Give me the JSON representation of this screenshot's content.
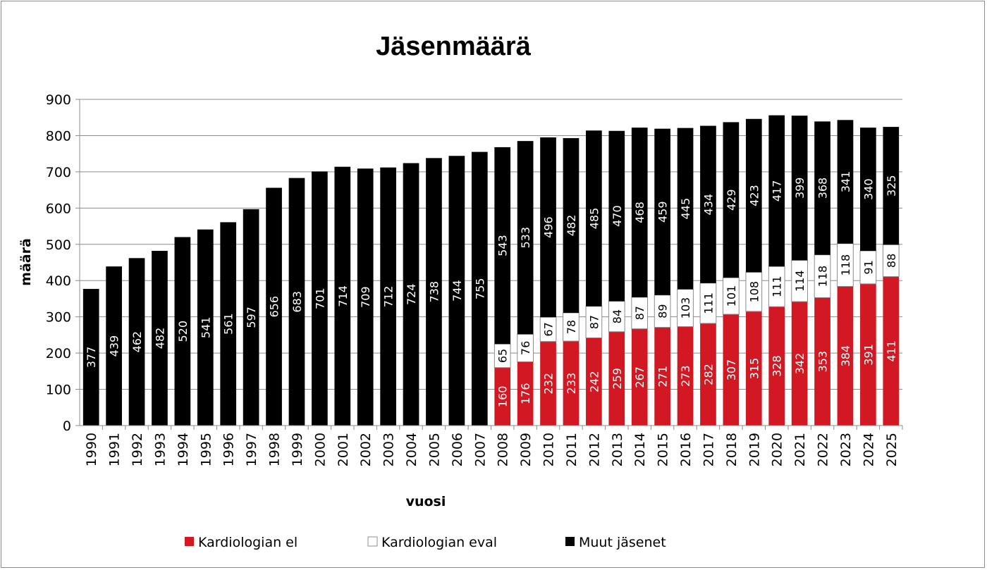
{
  "chart_data": {
    "type": "bar",
    "stacked": true,
    "title": "Jäsenmäärä",
    "xlabel": "vuosi",
    "ylabel": "määrä",
    "ylim": [
      0,
      900
    ],
    "yticks": [
      0,
      100,
      200,
      300,
      400,
      500,
      600,
      700,
      800,
      900
    ],
    "grid": true,
    "legend_position": "bottom",
    "categories": [
      "1990",
      "1991",
      "1992",
      "1993",
      "1994",
      "1995",
      "1996",
      "1997",
      "1998",
      "1999",
      "2000",
      "2001",
      "2002",
      "2003",
      "2004",
      "2005",
      "2006",
      "2007",
      "2008",
      "2009",
      "2010",
      "2011",
      "2012",
      "2013",
      "2014",
      "2015",
      "2016",
      "2017",
      "2018",
      "2019",
      "2020",
      "2021",
      "2022",
      "2023",
      "2024",
      "2025"
    ],
    "series": [
      {
        "name": "Kardiologian el",
        "color": "#d21923",
        "label_color": "#ffffff",
        "values": [
          null,
          null,
          null,
          null,
          null,
          null,
          null,
          null,
          null,
          null,
          null,
          null,
          null,
          null,
          null,
          null,
          null,
          null,
          160,
          176,
          232,
          233,
          242,
          259,
          267,
          271,
          273,
          282,
          307,
          315,
          328,
          342,
          353,
          384,
          391,
          411
        ]
      },
      {
        "name": "Kardiologian eval",
        "color": "#ffffff",
        "label_color": "#000000",
        "values": [
          null,
          null,
          null,
          null,
          null,
          null,
          null,
          null,
          null,
          null,
          null,
          null,
          null,
          null,
          null,
          null,
          null,
          null,
          65,
          76,
          67,
          78,
          87,
          84,
          87,
          89,
          103,
          111,
          101,
          108,
          111,
          114,
          118,
          118,
          91,
          88
        ]
      },
      {
        "name": "Muut jäsenet",
        "color": "#000000",
        "label_color": "#ffffff",
        "values": [
          377,
          439,
          462,
          482,
          520,
          541,
          561,
          597,
          656,
          683,
          701,
          714,
          709,
          712,
          724,
          738,
          744,
          755,
          543,
          533,
          496,
          482,
          485,
          470,
          468,
          459,
          445,
          434,
          429,
          423,
          417,
          399,
          368,
          341,
          340,
          325
        ]
      }
    ]
  }
}
